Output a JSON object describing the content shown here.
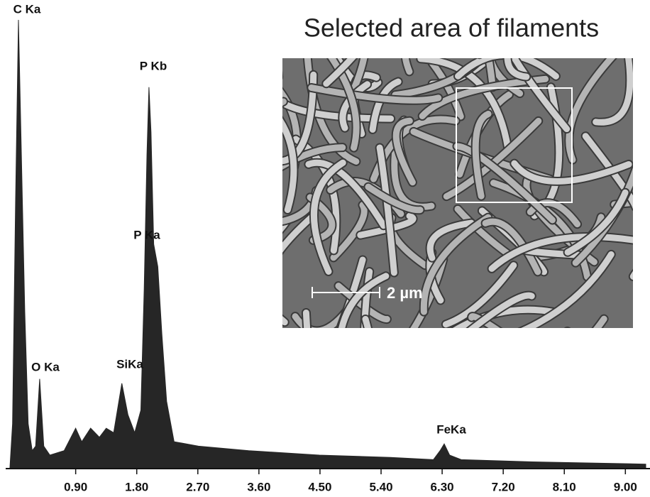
{
  "chart_data": {
    "type": "area",
    "title": "Selected area of filaments",
    "scale_bar_label": "2 µm",
    "annotations": [
      "C Ka",
      "O Ka",
      "SiKa",
      "P Kb",
      "P Ka",
      "FeKa"
    ],
    "x": [
      -0.07,
      -0.03,
      0.015,
      0.057,
      0.1,
      0.15,
      0.2,
      0.26,
      0.31,
      0.37,
      0.43,
      0.52,
      0.73,
      0.9,
      0.99,
      1.12,
      1.25,
      1.35,
      1.46,
      1.58,
      1.67,
      1.77,
      1.86,
      1.91,
      1.95,
      1.98,
      2.01,
      2.05,
      2.11,
      2.17,
      2.24,
      2.35,
      2.71,
      3.45,
      4.49,
      5.54,
      6.17,
      6.27,
      6.33,
      6.41,
      6.58,
      7.63,
      9.3
    ],
    "values": [
      0,
      10,
      60,
      100,
      70,
      35,
      10,
      4,
      5,
      20,
      5,
      3,
      4,
      9,
      6,
      9,
      7,
      9,
      8,
      19,
      12,
      8,
      13,
      40,
      70,
      85,
      75,
      50,
      45,
      30,
      15,
      6,
      5,
      4,
      3,
      2.5,
      2,
      4,
      5.5,
      3,
      2,
      1.5,
      1
    ],
    "color": "#262626",
    "xlim": [
      -0.1,
      9.3
    ],
    "ylim": [
      0,
      100
    ],
    "xticks": [
      {
        "value": 0.9,
        "label": "0.90"
      },
      {
        "value": 1.8,
        "label": "1.80"
      },
      {
        "value": 2.7,
        "label": "2.70"
      },
      {
        "value": 3.6,
        "label": "3.60"
      },
      {
        "value": 4.5,
        "label": "4.50"
      },
      {
        "value": 5.4,
        "label": "5.40"
      },
      {
        "value": 6.3,
        "label": "6.30"
      },
      {
        "value": 7.2,
        "label": "7.20"
      },
      {
        "value": 8.1,
        "label": "8.10"
      },
      {
        "value": 9.0,
        "label": "9.00"
      }
    ]
  }
}
